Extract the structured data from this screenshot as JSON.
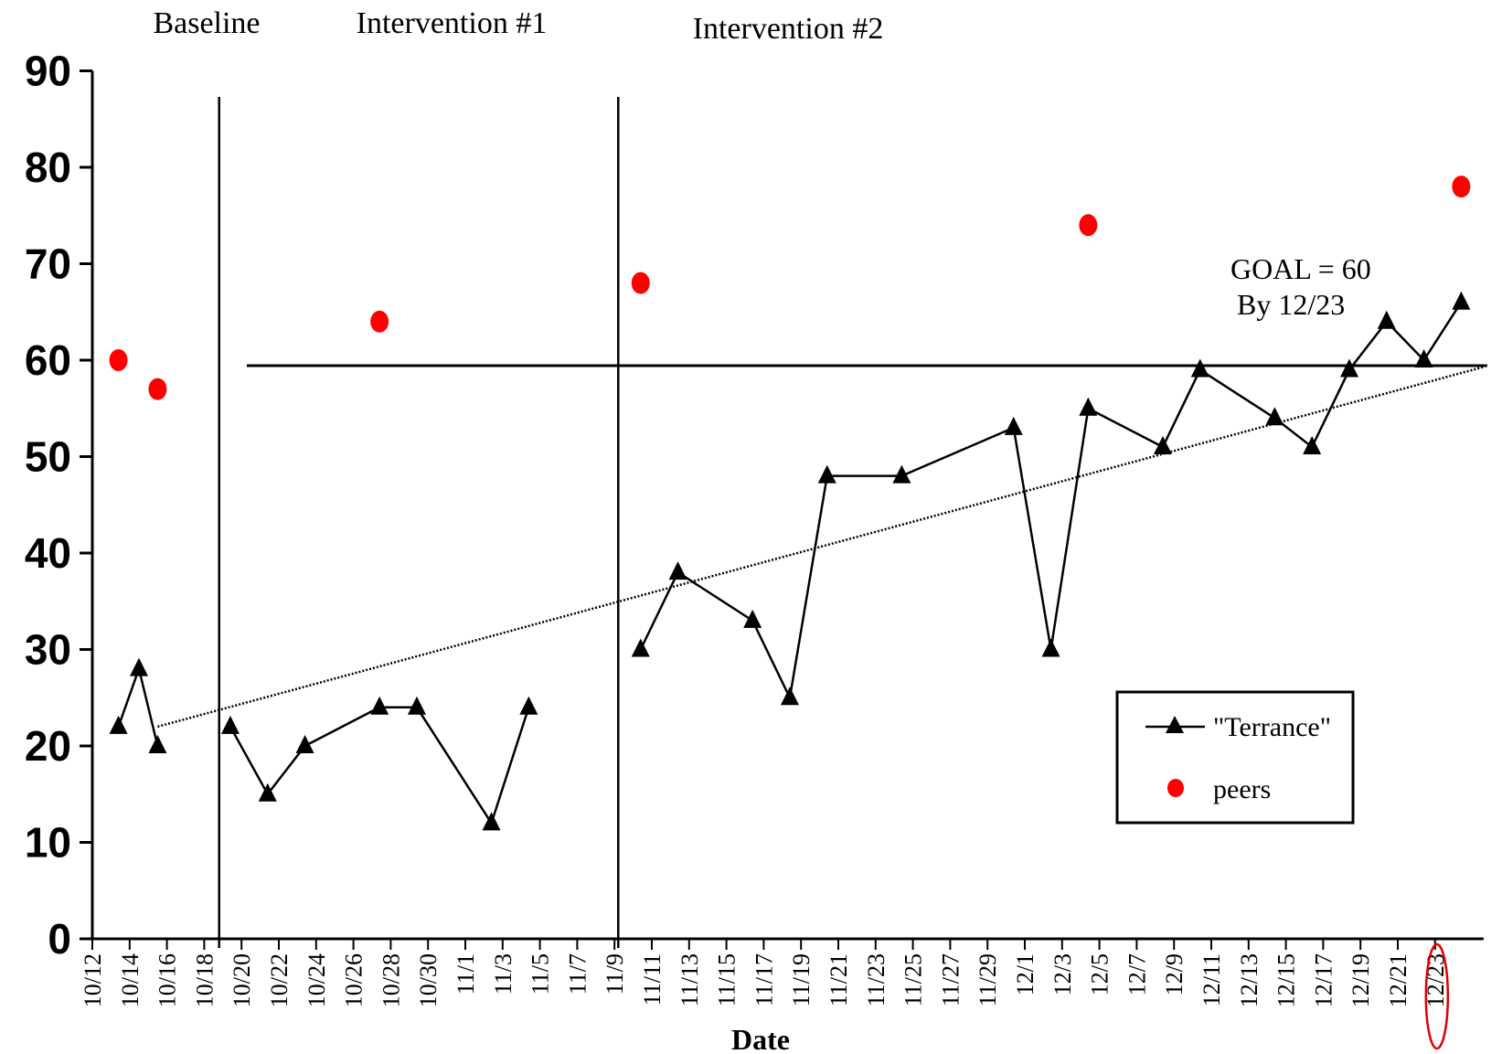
{
  "chart_data": {
    "type": "line",
    "xlabel": "Date",
    "ylabel": "",
    "ylim": [
      0,
      90
    ],
    "yticks": [
      0,
      10,
      20,
      30,
      40,
      50,
      60,
      70,
      80,
      90
    ],
    "x_tick_labels": [
      "10/12",
      "10/14",
      "10/16",
      "10/18",
      "10/20",
      "10/22",
      "10/24",
      "10/26",
      "10/28",
      "10/30",
      "11/1",
      "11/3",
      "11/5",
      "11/7",
      "11/9",
      "11/11",
      "11/13",
      "11/15",
      "11/17",
      "11/19",
      "11/21",
      "11/23",
      "11/25",
      "11/27",
      "11/29",
      "12/1",
      "12/3",
      "12/5",
      "12/7",
      "12/9",
      "12/11",
      "12/13",
      "12/15",
      "12/17",
      "12/19",
      "12/21",
      "12/23"
    ],
    "phases": [
      {
        "label": "Baseline",
        "start": 0,
        "end": 3.4
      },
      {
        "label": "Intervention #1",
        "start": 3.4,
        "end": 14.1
      },
      {
        "label": "Intervention #2",
        "start": 14.1,
        "end": 37
      }
    ],
    "goal": {
      "value": 60,
      "text1": "GOAL = 60",
      "text2": "By 12/23"
    },
    "trendline": {
      "start": [
        1.75,
        22
      ],
      "end": [
        37.3,
        59.3
      ]
    },
    "series": [
      {
        "name": "\"Terrance\"",
        "marker": "triangle",
        "color": "#000000",
        "segments": [
          [
            [
              0.7,
              22
            ],
            [
              1.25,
              28
            ],
            [
              1.75,
              20
            ]
          ],
          [
            [
              3.7,
              22
            ],
            [
              4.7,
              15
            ],
            [
              5.7,
              20
            ],
            [
              7.7,
              24
            ],
            [
              8.7,
              24
            ],
            [
              10.7,
              12
            ],
            [
              11.7,
              24
            ]
          ],
          [
            [
              14.7,
              30
            ],
            [
              15.7,
              38
            ],
            [
              17.7,
              33
            ],
            [
              18.7,
              25
            ],
            [
              19.7,
              48
            ],
            [
              21.7,
              48
            ],
            [
              24.7,
              53
            ],
            [
              25.7,
              30
            ],
            [
              26.7,
              55
            ],
            [
              28.7,
              51
            ],
            [
              29.7,
              59
            ],
            [
              31.7,
              54
            ],
            [
              32.7,
              51
            ],
            [
              33.7,
              59
            ],
            [
              34.7,
              64
            ],
            [
              35.7,
              60
            ],
            [
              36.7,
              66
            ]
          ]
        ]
      },
      {
        "name": "peers",
        "marker": "circle",
        "color": "#ff0000",
        "points": [
          [
            0.7,
            60
          ],
          [
            1.75,
            57
          ],
          [
            7.7,
            64
          ],
          [
            14.7,
            68
          ],
          [
            26.7,
            74
          ],
          [
            36.7,
            78
          ]
        ]
      }
    ],
    "legend": {
      "position": "lower-right"
    },
    "highlight": {
      "label": "12/23",
      "shape": "red-ellipse"
    }
  }
}
